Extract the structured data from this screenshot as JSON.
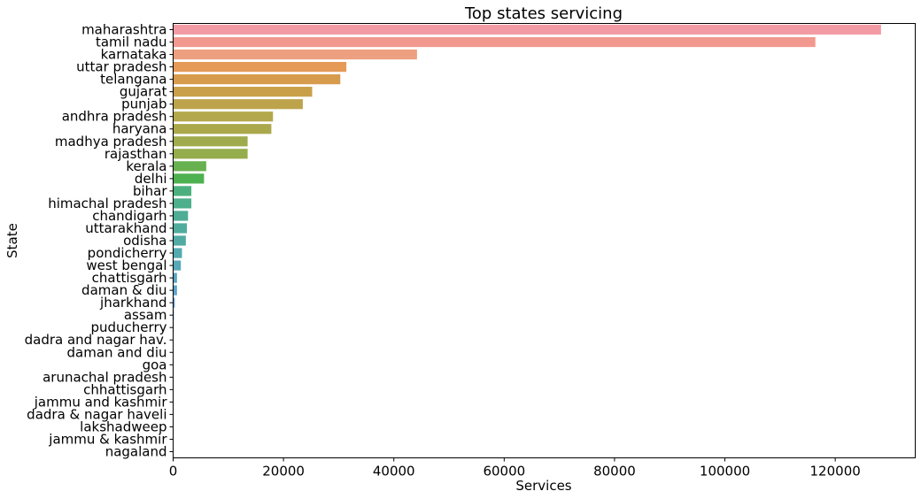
{
  "chart_data": {
    "type": "bar",
    "orientation": "horizontal",
    "title": "Top states servicing",
    "xlabel": "Services",
    "ylabel": "State",
    "xlim": [
      0,
      134500
    ],
    "xticks": [
      0,
      20000,
      40000,
      60000,
      80000,
      100000,
      120000
    ],
    "xtick_labels": [
      "0",
      "20000",
      "40000",
      "60000",
      "80000",
      "100000",
      "120000"
    ],
    "grid": false,
    "categories": [
      "maharashtra",
      "tamil nadu",
      "karnataka",
      "uttar pradesh",
      "telangana",
      "gujarat",
      "punjab",
      "andhra pradesh",
      "haryana",
      "madhya pradesh",
      "rajasthan",
      "kerala",
      "delhi",
      "bihar",
      "himachal pradesh",
      "chandigarh",
      "uttarakhand",
      "odisha",
      "pondicherry",
      "west bengal",
      "chattisgarh",
      "daman & diu",
      "jharkhand",
      "assam",
      "puducherry",
      "dadra and nagar hav.",
      "daman and diu",
      "goa",
      "arunachal pradesh",
      "chhattisgarh",
      "jammu and kashmir",
      "dadra & nagar haveli",
      "lakshadweep",
      "jammu & kashmir",
      "nagaland"
    ],
    "values": [
      128300,
      116400,
      44200,
      31400,
      30300,
      25200,
      23500,
      18100,
      17800,
      13500,
      13500,
      6000,
      5600,
      3300,
      3300,
      2700,
      2500,
      2300,
      1600,
      1400,
      700,
      700,
      300,
      150,
      120,
      80,
      60,
      50,
      40,
      30,
      30,
      20,
      20,
      15,
      10
    ],
    "colors": [
      "#f39ba4",
      "#f2998f",
      "#eda080",
      "#e59a58",
      "#d79b4e",
      "#c9a04a",
      "#bda44c",
      "#b3a94c",
      "#aba84c",
      "#9fab4c",
      "#95ad4c",
      "#67b150",
      "#4eb150",
      "#4cb07e",
      "#4daf8c",
      "#4ead94",
      "#50ac9c",
      "#51aaa3",
      "#53aab0",
      "#56a9b9",
      "#59a6c4",
      "#5ea4cf",
      "#67a0da",
      "#7c9ce5",
      "#9497ec",
      "#a891ef",
      "#b98bee",
      "#c988ec",
      "#d684e9",
      "#e17fe3",
      "#e87ed8",
      "#ed80cb",
      "#ef84bf",
      "#f088b3",
      "#f08ca6"
    ]
  }
}
